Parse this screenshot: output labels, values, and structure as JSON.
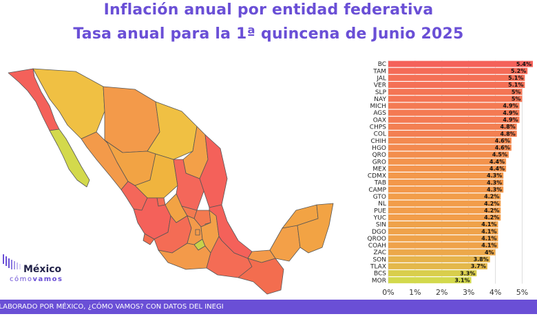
{
  "title_line1": "Inflación anual por entidad federativa",
  "title_line2": "Tasa anual para la 1ª quincena de Junio 2025",
  "logo": {
    "name": "México",
    "sub_a": "cómo",
    "sub_b": "vamos"
  },
  "footer_text": "ELABORADO POR MÉXICO, ¿CÓMO VAMOS? CON DATOS DEL INEGI",
  "colors": {
    "accent": "#6a4fd6",
    "high": "#f4615a",
    "mid": "#f39a4a",
    "low": "#d3d94c"
  },
  "chart_data": {
    "type": "bar",
    "orientation": "horizontal",
    "categories": [
      "BC",
      "TAM",
      "JAL",
      "VER",
      "SLP",
      "NAY",
      "MICH",
      "AGS",
      "OAX",
      "CHPS",
      "COL",
      "CHIH",
      "HGO",
      "QRO",
      "GRO",
      "MEX",
      "CDMX",
      "TAB",
      "CAMP",
      "GTO",
      "NL",
      "PUE",
      "YUC",
      "SIN",
      "DGO",
      "QROO",
      "COAH",
      "ZAC",
      "SON",
      "TLAX",
      "BCS",
      "MOR"
    ],
    "values": [
      5.4,
      5.2,
      5.1,
      5.1,
      5.0,
      5.0,
      4.9,
      4.9,
      4.9,
      4.8,
      4.8,
      4.6,
      4.6,
      4.5,
      4.4,
      4.4,
      4.3,
      4.3,
      4.3,
      4.2,
      4.2,
      4.2,
      4.2,
      4.1,
      4.1,
      4.1,
      4.1,
      4.0,
      3.8,
      3.7,
      3.3,
      3.1
    ],
    "value_labels": [
      "5.4%",
      "5.2%",
      "5.1%",
      "5.1%",
      "5%",
      "5%",
      "4.9%",
      "4.9%",
      "4.9%",
      "4.8%",
      "4.8%",
      "4.6%",
      "4.6%",
      "4.5%",
      "4.4%",
      "4.4%",
      "4.3%",
      "4.3%",
      "4.3%",
      "4.2%",
      "4.2%",
      "4.2%",
      "4.2%",
      "4.1%",
      "4.1%",
      "4.1%",
      "4.1%",
      "4%",
      "3.8%",
      "3.7%",
      "3.3%",
      "3.1%"
    ],
    "xlim": [
      0,
      5.4
    ],
    "xticks": [
      "0%",
      "1%",
      "2%",
      "3%",
      "4%",
      "5%"
    ],
    "xtick_values": [
      0,
      1,
      2,
      3,
      4,
      5
    ],
    "grid": true
  }
}
